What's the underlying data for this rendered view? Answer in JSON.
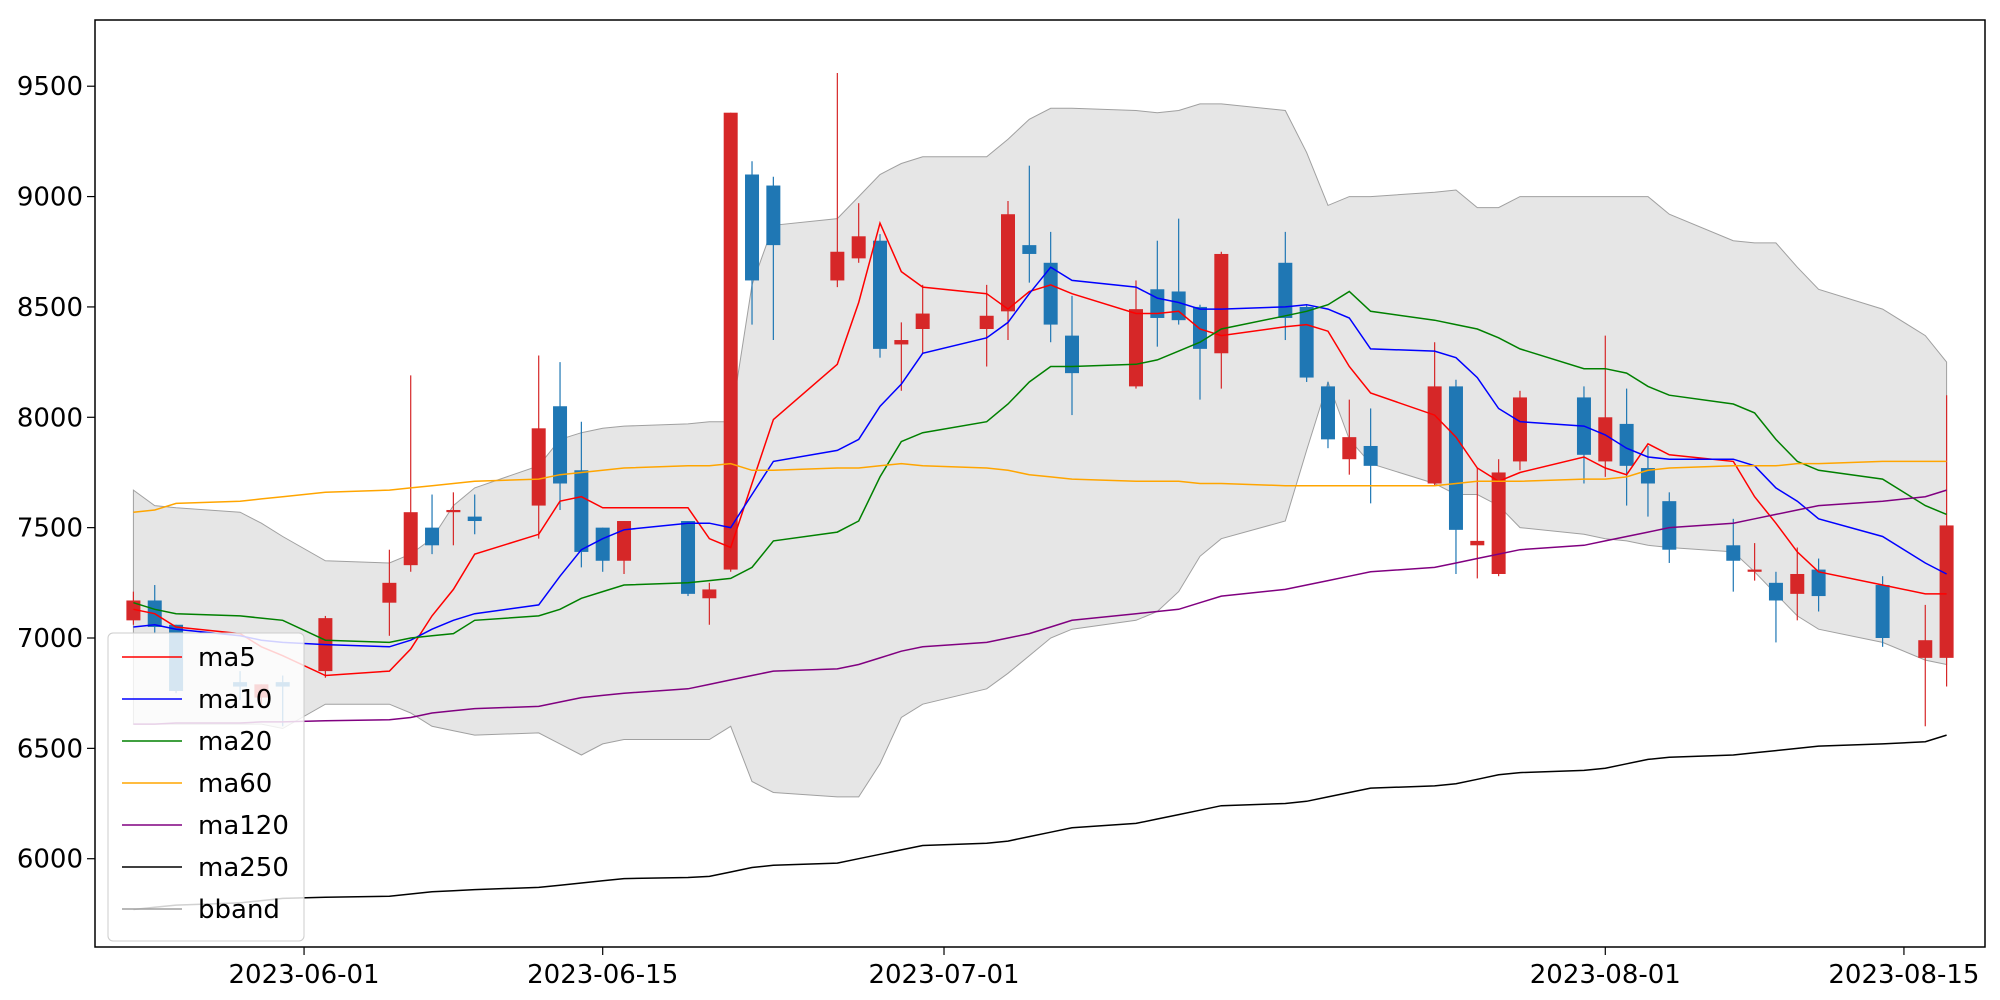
{
  "chart_data": {
    "type": "candlestick",
    "title": "",
    "xlabel": "",
    "ylabel": "",
    "ylim": [
      5600,
      9800
    ],
    "y_ticks": [
      6000,
      6500,
      7000,
      7500,
      8000,
      8500,
      9000,
      9500
    ],
    "x_ticks": [
      "2023-06-01",
      "2023-06-15",
      "2023-07-01",
      "2023-08-01",
      "2023-08-15"
    ],
    "grid": false,
    "legend_position": "lower-left",
    "up_color": "#d62728",
    "down_color": "#1f77b4",
    "band_color": "#e6e6e6",
    "dates": [
      "2023-05-24",
      "2023-05-25",
      "2023-05-26",
      "2023-05-29",
      "2023-05-30",
      "2023-05-31",
      "2023-06-02",
      "2023-06-05",
      "2023-06-06",
      "2023-06-07",
      "2023-06-08",
      "2023-06-09",
      "2023-06-12",
      "2023-06-13",
      "2023-06-14",
      "2023-06-15",
      "2023-06-16",
      "2023-06-19",
      "2023-06-20",
      "2023-06-21",
      "2023-06-22",
      "2023-06-23",
      "2023-06-26",
      "2023-06-27",
      "2023-06-28",
      "2023-06-29",
      "2023-06-30",
      "2023-07-03",
      "2023-07-04",
      "2023-07-05",
      "2023-07-06",
      "2023-07-07",
      "2023-07-10",
      "2023-07-11",
      "2023-07-12",
      "2023-07-13",
      "2023-07-14",
      "2023-07-17",
      "2023-07-18",
      "2023-07-19",
      "2023-07-20",
      "2023-07-21",
      "2023-07-24",
      "2023-07-25",
      "2023-07-26",
      "2023-07-27",
      "2023-07-28",
      "2023-07-31",
      "2023-08-01",
      "2023-08-02",
      "2023-08-03",
      "2023-08-04",
      "2023-08-07",
      "2023-08-08",
      "2023-08-09",
      "2023-08-10",
      "2023-08-11",
      "2023-08-14",
      "2023-08-16",
      "2023-08-17"
    ],
    "ohlc": [
      [
        7080,
        7210,
        7060,
        7170
      ],
      [
        7170,
        7240,
        7020,
        7050
      ],
      [
        7060,
        7060,
        6750,
        6760
      ],
      [
        6800,
        6850,
        6720,
        6780
      ],
      [
        6730,
        6790,
        6700,
        6790
      ],
      [
        6800,
        6830,
        6600,
        6780
      ],
      [
        6850,
        7100,
        6820,
        7090
      ],
      [
        7160,
        7400,
        7010,
        7250
      ],
      [
        7330,
        8190,
        7300,
        7570
      ],
      [
        7500,
        7650,
        7380,
        7420
      ],
      [
        7570,
        7660,
        7420,
        7580
      ],
      [
        7550,
        7650,
        7470,
        7530
      ],
      [
        7600,
        8280,
        7450,
        7950
      ],
      [
        8050,
        8250,
        7580,
        7700
      ],
      [
        7760,
        7980,
        7320,
        7390
      ],
      [
        7500,
        7500,
        7300,
        7350
      ],
      [
        7350,
        7530,
        7290,
        7530
      ],
      [
        7530,
        7530,
        7190,
        7200
      ],
      [
        7180,
        7250,
        7060,
        7220
      ],
      [
        7310,
        9380,
        7300,
        9380
      ],
      [
        9100,
        9160,
        8420,
        8620
      ],
      [
        9050,
        9090,
        8350,
        8780
      ],
      [
        8620,
        9560,
        8590,
        8750
      ],
      [
        8720,
        8970,
        8700,
        8820
      ],
      [
        8800,
        8830,
        8270,
        8310
      ],
      [
        8330,
        8430,
        8120,
        8350
      ],
      [
        8400,
        8600,
        8290,
        8470
      ],
      [
        8400,
        8600,
        8230,
        8460
      ],
      [
        8480,
        8980,
        8350,
        8920
      ],
      [
        8780,
        9140,
        8610,
        8740
      ],
      [
        8700,
        8840,
        8340,
        8420
      ],
      [
        8370,
        8550,
        8010,
        8200
      ],
      [
        8140,
        8620,
        8130,
        8490
      ],
      [
        8580,
        8800,
        8320,
        8450
      ],
      [
        8570,
        8900,
        8420,
        8440
      ],
      [
        8500,
        8510,
        8080,
        8310
      ],
      [
        8290,
        8750,
        8130,
        8740
      ],
      [
        8700,
        8840,
        8350,
        8450
      ],
      [
        8500,
        8510,
        8160,
        8180
      ],
      [
        8140,
        8160,
        7860,
        7900
      ],
      [
        7810,
        8080,
        7740,
        7910
      ],
      [
        7870,
        8040,
        7610,
        7780
      ],
      [
        7700,
        8340,
        7690,
        8140
      ],
      [
        8140,
        8170,
        7290,
        7490
      ],
      [
        7420,
        7770,
        7270,
        7440
      ],
      [
        7290,
        7810,
        7280,
        7750
      ],
      [
        7800,
        8120,
        7760,
        8090
      ],
      [
        8090,
        8140,
        7700,
        7830
      ],
      [
        7800,
        8370,
        7730,
        8000
      ],
      [
        7970,
        8130,
        7600,
        7780
      ],
      [
        7770,
        7870,
        7550,
        7700
      ],
      [
        7620,
        7660,
        7340,
        7400
      ],
      [
        7420,
        7540,
        7210,
        7350
      ],
      [
        7300,
        7430,
        7260,
        7310
      ],
      [
        7250,
        7300,
        6980,
        7170
      ],
      [
        7200,
        7410,
        7080,
        7290
      ],
      [
        7310,
        7360,
        7120,
        7190
      ],
      [
        7240,
        7280,
        6960,
        7000
      ],
      [
        6910,
        7150,
        6600,
        6990
      ],
      [
        6910,
        8100,
        6780,
        7510
      ]
    ],
    "series": [
      {
        "name": "ma5",
        "color": "#ff0000",
        "values": [
          7130,
          7110,
          7050,
          7020,
          6960,
          6920,
          6830,
          6850,
          6950,
          7100,
          7220,
          7380,
          7470,
          7620,
          7640,
          7590,
          7590,
          7590,
          7450,
          7410,
          7700,
          7990,
          8240,
          8520,
          8880,
          8660,
          8590,
          8560,
          8490,
          8570,
          8600,
          8560,
          8470,
          8470,
          8480,
          8400,
          8370,
          8410,
          8420,
          8390,
          8230,
          8110,
          8010,
          7910,
          7770,
          7710,
          7750,
          7820,
          7770,
          7740,
          7880,
          7830,
          7800,
          7640,
          7520,
          7390,
          7300,
          7240,
          7200,
          7200
        ]
      },
      {
        "name": "ma10",
        "color": "#0000ff",
        "values": [
          7050,
          7060,
          7040,
          7010,
          6990,
          6980,
          6970,
          6960,
          6990,
          7040,
          7080,
          7110,
          7150,
          7280,
          7400,
          7450,
          7490,
          7520,
          7520,
          7500,
          7650,
          7800,
          7850,
          7900,
          8050,
          8150,
          8290,
          8360,
          8430,
          8560,
          8680,
          8620,
          8590,
          8540,
          8520,
          8490,
          8490,
          8500,
          8510,
          8490,
          8450,
          8310,
          8300,
          8270,
          8180,
          8040,
          7980,
          7960,
          7920,
          7860,
          7820,
          7810,
          7810,
          7780,
          7680,
          7620,
          7540,
          7460,
          7340,
          7290
        ]
      },
      {
        "name": "ma20",
        "color": "#008000",
        "values": [
          7160,
          7130,
          7110,
          7100,
          7090,
          7080,
          6990,
          6980,
          7000,
          7010,
          7020,
          7080,
          7100,
          7130,
          7180,
          7210,
          7240,
          7250,
          7260,
          7270,
          7320,
          7440,
          7480,
          7530,
          7730,
          7890,
          7930,
          7980,
          8060,
          8160,
          8230,
          8230,
          8240,
          8260,
          8300,
          8340,
          8400,
          8460,
          8480,
          8510,
          8570,
          8480,
          8440,
          8420,
          8400,
          8360,
          8310,
          8220,
          8220,
          8200,
          8140,
          8100,
          8060,
          8020,
          7900,
          7800,
          7760,
          7720,
          7600,
          7560
        ]
      },
      {
        "name": "ma60",
        "color": "#ffa500",
        "values": [
          7570,
          7580,
          7610,
          7620,
          7630,
          7640,
          7660,
          7670,
          7680,
          7690,
          7700,
          7710,
          7720,
          7740,
          7750,
          7760,
          7770,
          7780,
          7780,
          7790,
          7760,
          7760,
          7770,
          7770,
          7780,
          7790,
          7780,
          7770,
          7760,
          7740,
          7730,
          7720,
          7710,
          7710,
          7710,
          7700,
          7700,
          7690,
          7690,
          7690,
          7690,
          7690,
          7690,
          7700,
          7710,
          7710,
          7710,
          7720,
          7720,
          7730,
          7760,
          7770,
          7780,
          7780,
          7780,
          7790,
          7790,
          7800,
          7800,
          7800
        ]
      },
      {
        "name": "ma120",
        "color": "#800080",
        "values": [
          6610,
          6610,
          6615,
          6615,
          6620,
          6620,
          6625,
          6630,
          6640,
          6660,
          6670,
          6680,
          6690,
          6710,
          6730,
          6740,
          6750,
          6770,
          6790,
          6810,
          6830,
          6850,
          6860,
          6880,
          6910,
          6940,
          6960,
          6980,
          7000,
          7020,
          7050,
          7080,
          7110,
          7120,
          7130,
          7160,
          7190,
          7220,
          7240,
          7260,
          7280,
          7300,
          7320,
          7340,
          7360,
          7380,
          7400,
          7420,
          7440,
          7460,
          7480,
          7500,
          7520,
          7540,
          7560,
          7580,
          7600,
          7620,
          7640,
          7670
        ]
      },
      {
        "name": "ma250",
        "color": "#000000",
        "values": [
          5770,
          5780,
          5790,
          5800,
          5810,
          5820,
          5825,
          5830,
          5840,
          5850,
          5855,
          5860,
          5870,
          5880,
          5890,
          5900,
          5910,
          5915,
          5920,
          5940,
          5960,
          5970,
          5980,
          6000,
          6020,
          6040,
          6060,
          6070,
          6080,
          6100,
          6120,
          6140,
          6160,
          6180,
          6200,
          6220,
          6240,
          6250,
          6260,
          6280,
          6300,
          6320,
          6330,
          6340,
          6360,
          6380,
          6390,
          6400,
          6410,
          6430,
          6450,
          6460,
          6470,
          6480,
          6490,
          6500,
          6510,
          6520,
          6530,
          6560
        ]
      }
    ],
    "bband": {
      "name": "bband",
      "color": "#a0a0a0",
      "upper": [
        7670,
        7600,
        7590,
        7570,
        7520,
        7460,
        7350,
        7340,
        7380,
        7450,
        7600,
        7680,
        7780,
        7900,
        7930,
        7950,
        7960,
        7970,
        7980,
        7980,
        8600,
        8870,
        8900,
        9000,
        9100,
        9150,
        9180,
        9180,
        9260,
        9350,
        9400,
        9400,
        9390,
        9380,
        9390,
        9420,
        9420,
        9390,
        9200,
        8960,
        9000,
        9000,
        9020,
        9030,
        8950,
        8950,
        9000,
        9000,
        9000,
        9000,
        9000,
        8920,
        8800,
        8790,
        8790,
        8680,
        8580,
        8490,
        8370,
        8250
      ],
      "lower": [
        6610,
        6610,
        6610,
        6610,
        6610,
        6590,
        6700,
        6700,
        6660,
        6600,
        6580,
        6560,
        6570,
        6520,
        6470,
        6520,
        6540,
        6540,
        6540,
        6600,
        6350,
        6300,
        6280,
        6280,
        6430,
        6640,
        6700,
        6770,
        6840,
        6920,
        7000,
        7040,
        7080,
        7120,
        7210,
        7370,
        7450,
        7530,
        7850,
        8160,
        7900,
        7790,
        7700,
        7650,
        7650,
        7600,
        7500,
        7470,
        7450,
        7440,
        7420,
        7410,
        7390,
        7300,
        7200,
        7100,
        7040,
        6980,
        6900,
        6880
      ]
    }
  }
}
